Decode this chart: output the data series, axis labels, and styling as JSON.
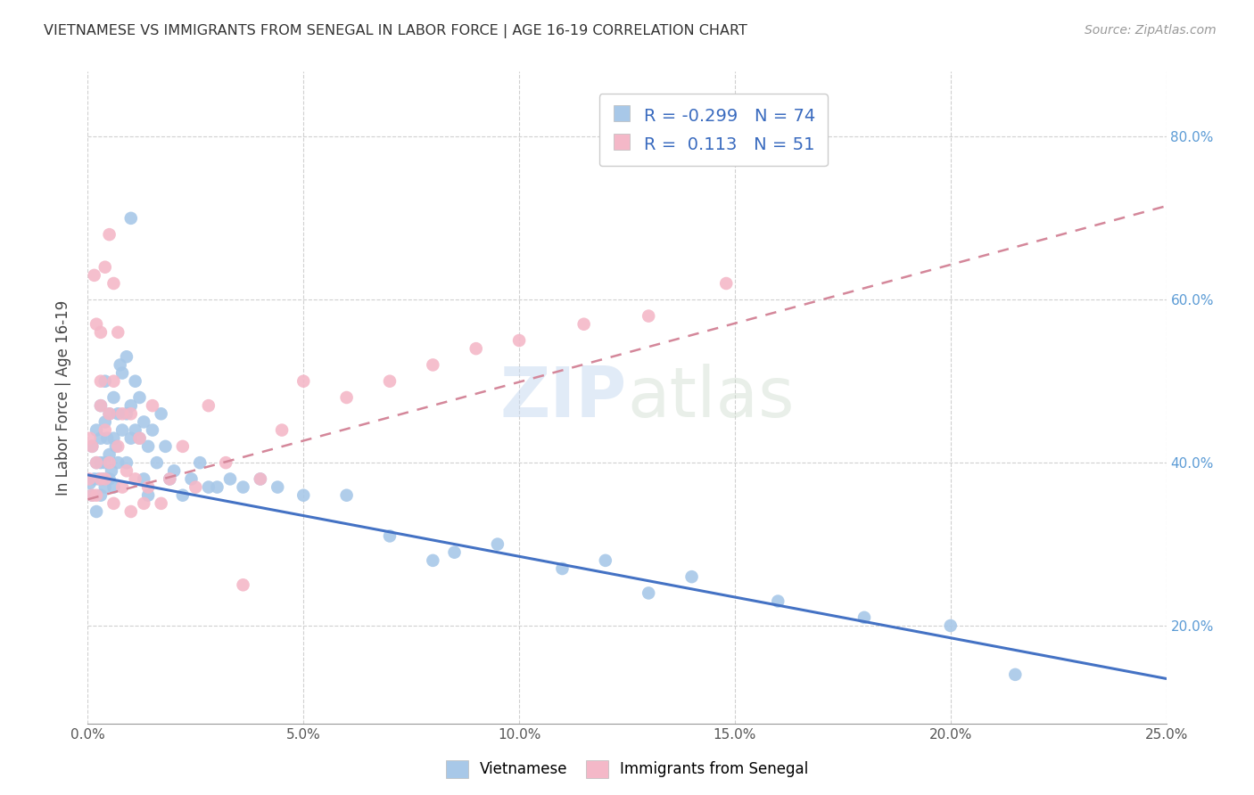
{
  "title": "VIETNAMESE VS IMMIGRANTS FROM SENEGAL IN LABOR FORCE | AGE 16-19 CORRELATION CHART",
  "source": "Source: ZipAtlas.com",
  "ylabel": "In Labor Force | Age 16-19",
  "xlim": [
    0.0,
    0.25
  ],
  "ylim": [
    0.08,
    0.88
  ],
  "xticks": [
    0.0,
    0.05,
    0.1,
    0.15,
    0.2,
    0.25
  ],
  "yticks": [
    0.2,
    0.4,
    0.6,
    0.8
  ],
  "xtick_labels": [
    "0.0%",
    "5.0%",
    "10.0%",
    "15.0%",
    "20.0%",
    "25.0%"
  ],
  "ytick_labels": [
    "20.0%",
    "40.0%",
    "60.0%",
    "80.0%"
  ],
  "watermark_zip": "ZIP",
  "watermark_atlas": "atlas",
  "legend_labels_bottom": [
    "Vietnamese",
    "Immigrants from Senegal"
  ],
  "vietnamese_color": "#a8c8e8",
  "senegal_color": "#f4b8c8",
  "vietnamese_line_color": "#4472c4",
  "senegal_line_color": "#d4879a",
  "viet_line_x0": 0.0,
  "viet_line_y0": 0.385,
  "viet_line_x1": 0.25,
  "viet_line_y1": 0.135,
  "sen_line_x0": 0.0,
  "sen_line_y0": 0.355,
  "sen_line_x1": 0.25,
  "sen_line_y1": 0.715,
  "legend_r1": "R = ",
  "legend_r1_val": "-0.299",
  "legend_n1": "N = ",
  "legend_n1_val": "74",
  "legend_r2": "R = ",
  "legend_r2_val": "0.113",
  "legend_n2": "N = ",
  "legend_n2_val": "51",
  "vietnamese_x": [
    0.0005,
    0.001,
    0.001,
    0.0015,
    0.002,
    0.002,
    0.002,
    0.0025,
    0.003,
    0.003,
    0.003,
    0.003,
    0.0035,
    0.004,
    0.004,
    0.004,
    0.004,
    0.0045,
    0.005,
    0.005,
    0.005,
    0.0055,
    0.006,
    0.006,
    0.006,
    0.0065,
    0.007,
    0.007,
    0.0075,
    0.008,
    0.008,
    0.009,
    0.009,
    0.009,
    0.01,
    0.01,
    0.01,
    0.011,
    0.011,
    0.012,
    0.012,
    0.013,
    0.013,
    0.014,
    0.014,
    0.015,
    0.016,
    0.017,
    0.018,
    0.019,
    0.02,
    0.022,
    0.024,
    0.026,
    0.028,
    0.03,
    0.033,
    0.036,
    0.04,
    0.044,
    0.05,
    0.06,
    0.07,
    0.08,
    0.085,
    0.095,
    0.11,
    0.12,
    0.13,
    0.14,
    0.16,
    0.18,
    0.2,
    0.215
  ],
  "vietnamese_y": [
    0.375,
    0.36,
    0.42,
    0.38,
    0.4,
    0.44,
    0.34,
    0.38,
    0.36,
    0.4,
    0.43,
    0.47,
    0.38,
    0.37,
    0.4,
    0.45,
    0.5,
    0.43,
    0.38,
    0.41,
    0.46,
    0.39,
    0.37,
    0.43,
    0.48,
    0.42,
    0.4,
    0.46,
    0.52,
    0.44,
    0.51,
    0.4,
    0.46,
    0.53,
    0.43,
    0.47,
    0.7,
    0.44,
    0.5,
    0.43,
    0.48,
    0.38,
    0.45,
    0.42,
    0.36,
    0.44,
    0.4,
    0.46,
    0.42,
    0.38,
    0.39,
    0.36,
    0.38,
    0.4,
    0.37,
    0.37,
    0.38,
    0.37,
    0.38,
    0.37,
    0.36,
    0.36,
    0.31,
    0.28,
    0.29,
    0.3,
    0.27,
    0.28,
    0.24,
    0.26,
    0.23,
    0.21,
    0.2,
    0.14
  ],
  "senegal_x": [
    0.0003,
    0.0005,
    0.001,
    0.001,
    0.0015,
    0.002,
    0.002,
    0.002,
    0.003,
    0.003,
    0.003,
    0.003,
    0.004,
    0.004,
    0.004,
    0.005,
    0.005,
    0.005,
    0.006,
    0.006,
    0.006,
    0.007,
    0.007,
    0.008,
    0.008,
    0.009,
    0.01,
    0.01,
    0.011,
    0.012,
    0.013,
    0.014,
    0.015,
    0.017,
    0.019,
    0.022,
    0.025,
    0.028,
    0.032,
    0.036,
    0.04,
    0.045,
    0.05,
    0.06,
    0.07,
    0.08,
    0.09,
    0.1,
    0.115,
    0.13,
    0.148
  ],
  "senegal_y": [
    0.38,
    0.43,
    0.36,
    0.42,
    0.63,
    0.57,
    0.4,
    0.36,
    0.47,
    0.5,
    0.38,
    0.56,
    0.44,
    0.38,
    0.64,
    0.4,
    0.46,
    0.68,
    0.35,
    0.5,
    0.62,
    0.42,
    0.56,
    0.37,
    0.46,
    0.39,
    0.34,
    0.46,
    0.38,
    0.43,
    0.35,
    0.37,
    0.47,
    0.35,
    0.38,
    0.42,
    0.37,
    0.47,
    0.4,
    0.25,
    0.38,
    0.44,
    0.5,
    0.48,
    0.5,
    0.52,
    0.54,
    0.55,
    0.57,
    0.58,
    0.62
  ]
}
